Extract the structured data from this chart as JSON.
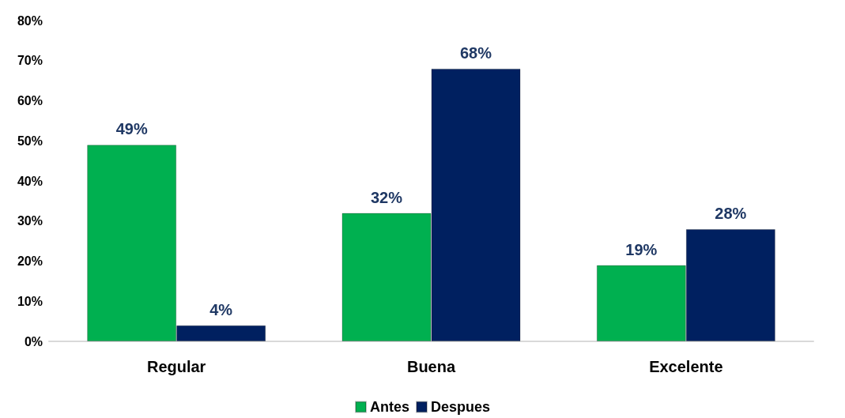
{
  "chart_data": {
    "type": "bar",
    "categories": [
      "Regular",
      "Buena",
      "Excelente"
    ],
    "series": [
      {
        "name": "Antes",
        "color": "#00b050",
        "values": [
          49,
          32,
          19
        ],
        "value_labels": [
          "49%",
          "32%",
          "19%"
        ]
      },
      {
        "name": "Despues",
        "color": "#002060",
        "values": [
          4,
          68,
          28
        ],
        "value_labels": [
          "4%",
          "68%",
          "28%"
        ]
      }
    ],
    "ylim": [
      0,
      80
    ],
    "yticks": [
      {
        "value": 0,
        "label": "0%"
      },
      {
        "value": 10,
        "label": "10%"
      },
      {
        "value": 20,
        "label": "20%"
      },
      {
        "value": 30,
        "label": "30%"
      },
      {
        "value": 40,
        "label": "40%"
      },
      {
        "value": 50,
        "label": "50%"
      },
      {
        "value": 60,
        "label": "60%"
      },
      {
        "value": 70,
        "label": "70%"
      },
      {
        "value": 80,
        "label": "80%"
      }
    ],
    "grid": false,
    "legend": "bottom"
  }
}
